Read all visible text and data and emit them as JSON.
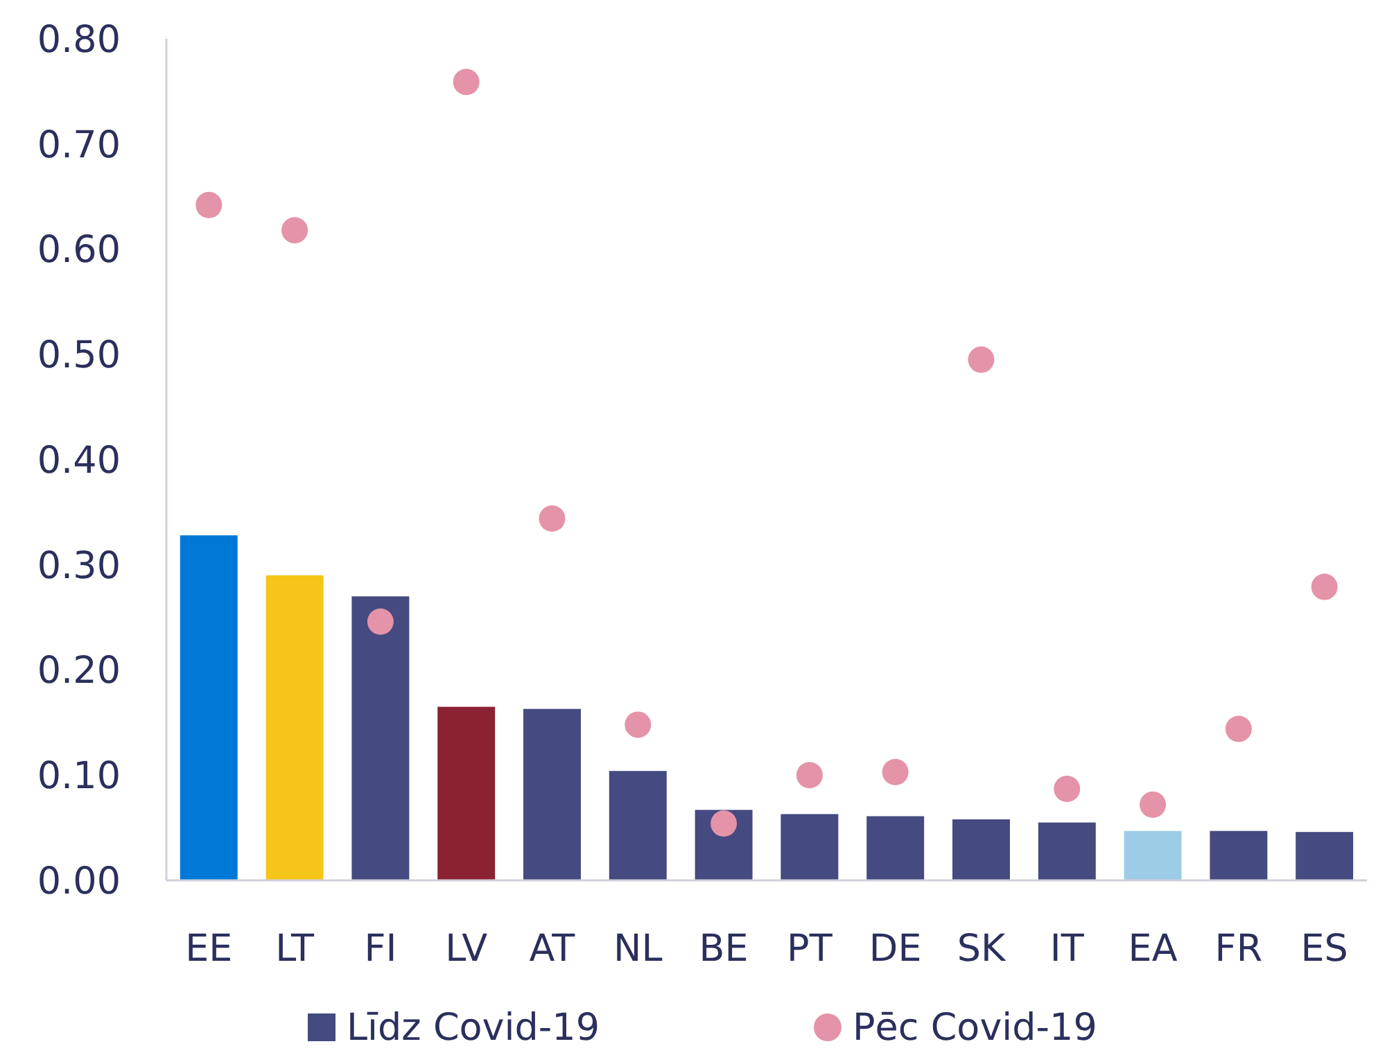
{
  "chart_data": {
    "type": "bar",
    "categories": [
      "EE",
      "LT",
      "FI",
      "LV",
      "AT",
      "NL",
      "BE",
      "PT",
      "DE",
      "SK",
      "IT",
      "EA",
      "FR",
      "ES"
    ],
    "series": [
      {
        "name": "Līdz Covid-19",
        "type": "bar",
        "color": "#454a80",
        "colors": [
          "#0078d7",
          "#f5c518",
          "#454a80",
          "#8b2233",
          "#454a80",
          "#454a80",
          "#454a80",
          "#454a80",
          "#454a80",
          "#454a80",
          "#454a80",
          "#9dcce6",
          "#454a80",
          "#454a80"
        ],
        "values": [
          0.328,
          0.29,
          0.27,
          0.165,
          0.163,
          0.104,
          0.067,
          0.063,
          0.061,
          0.058,
          0.055,
          0.047,
          0.047,
          0.046
        ]
      },
      {
        "name": "Pēc Covid-19",
        "type": "scatter",
        "color": "#e493a8",
        "marker": "circle",
        "x": [
          "EE",
          "LT",
          "FI",
          "LV",
          "AT",
          "NL",
          "BE",
          "PT",
          "DE",
          "SK",
          "IT",
          "EA",
          "FR",
          "ES"
        ],
        "values": [
          0.642,
          0.618,
          0.246,
          0.759,
          0.344,
          0.148,
          0.054,
          0.1,
          0.103,
          0.495,
          0.087,
          0.072,
          0.144,
          0.279
        ]
      }
    ],
    "ylim": [
      0,
      0.8
    ],
    "yticks": [
      {
        "value": 0,
        "label": "0.00"
      },
      {
        "value": 0.1,
        "label": "0.10"
      },
      {
        "value": 0.2,
        "label": "0.20"
      },
      {
        "value": 0.3,
        "label": "0.30"
      },
      {
        "value": 0.4,
        "label": "0.40"
      },
      {
        "value": 0.5,
        "label": "0.50"
      },
      {
        "value": 0.6,
        "label": "0.60"
      },
      {
        "value": 0.7,
        "label": "0.70"
      },
      {
        "value": 0.8,
        "label": "0.80"
      }
    ],
    "grid": false,
    "legend": "bottom"
  }
}
